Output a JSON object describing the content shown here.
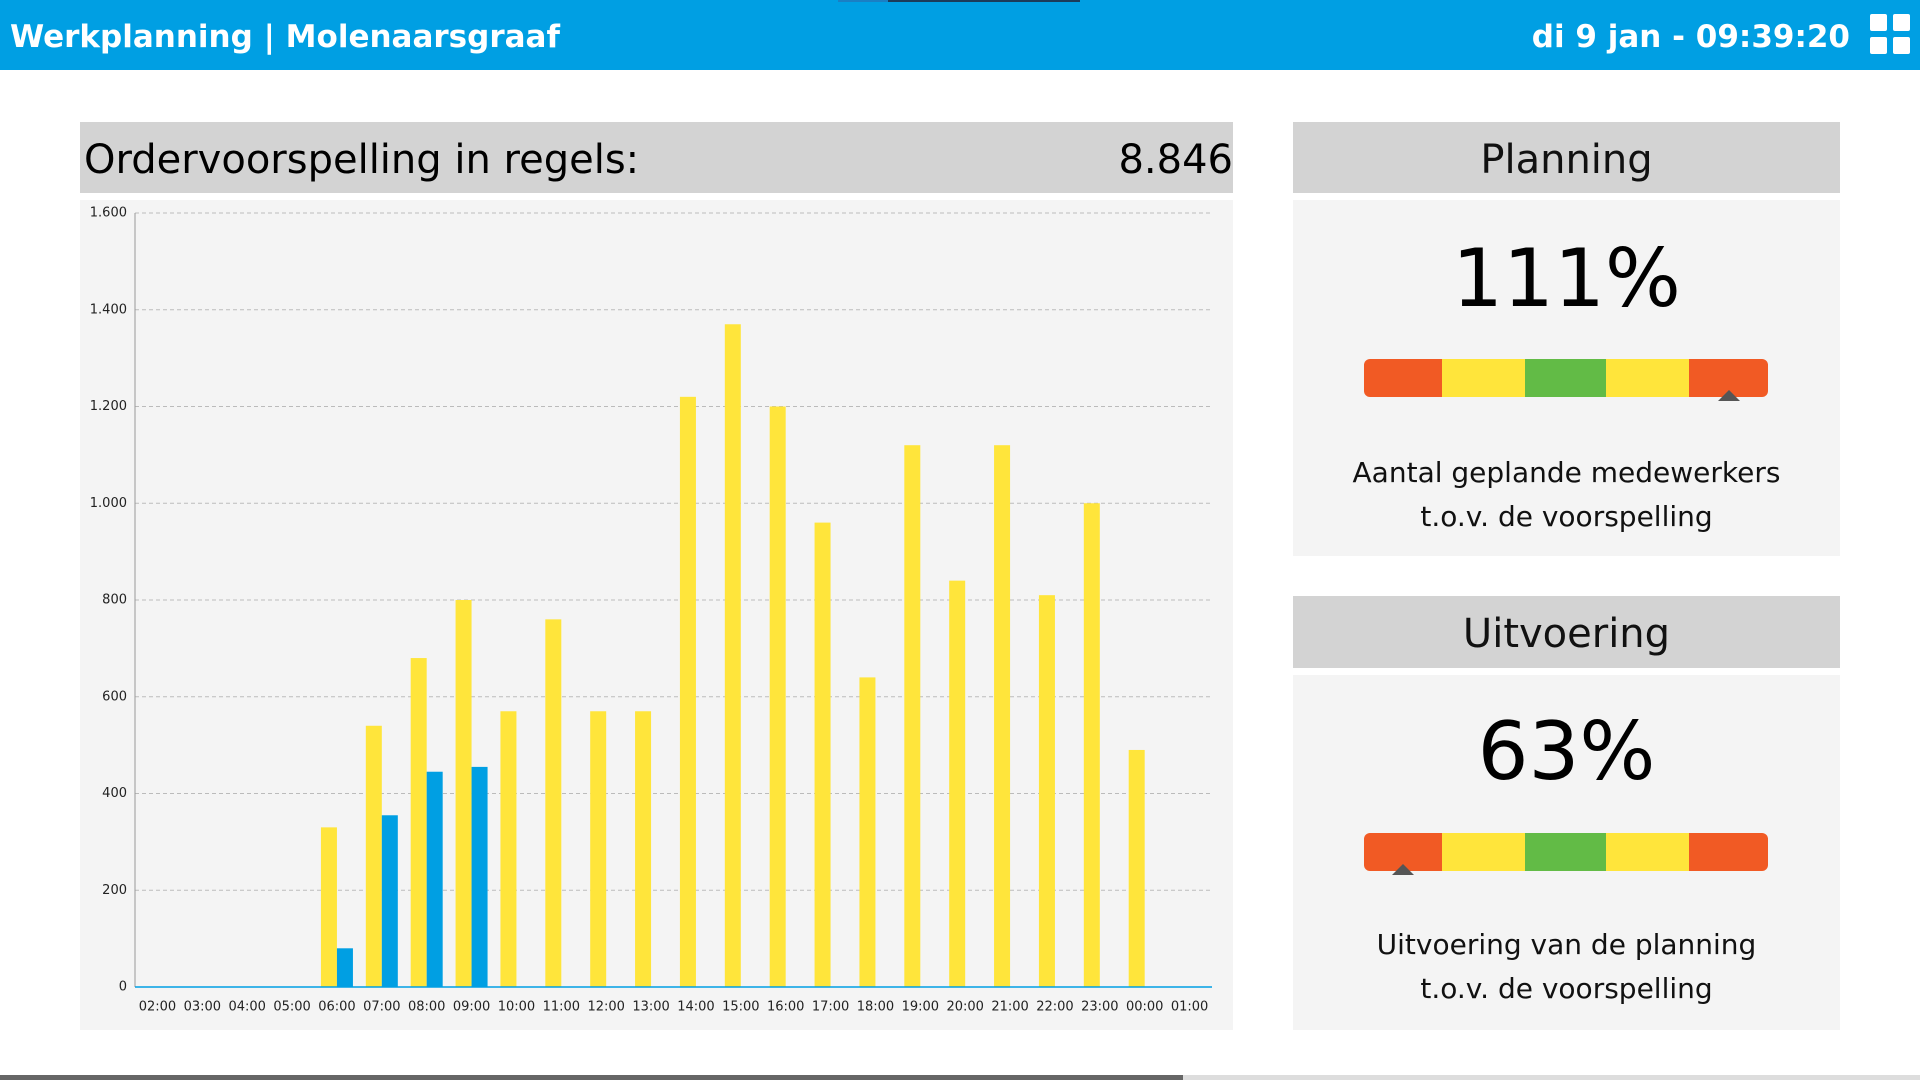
{
  "header": {
    "title": "Werkplanning | Molenaarsgraaf",
    "datetime": "di 9 jan - 09:39:20"
  },
  "chart_data": {
    "type": "bar",
    "title": "Ordervoorspelling in regels:",
    "total": "8.846",
    "categories": [
      "02:00",
      "03:00",
      "04:00",
      "05:00",
      "06:00",
      "07:00",
      "08:00",
      "09:00",
      "10:00",
      "11:00",
      "12:00",
      "13:00",
      "14:00",
      "15:00",
      "16:00",
      "17:00",
      "18:00",
      "19:00",
      "20:00",
      "21:00",
      "22:00",
      "23:00",
      "00:00",
      "01:00"
    ],
    "series": [
      {
        "color": "#ffe53b",
        "values": [
          0,
          0,
          0,
          0,
          330,
          540,
          680,
          800,
          570,
          760,
          570,
          570,
          1220,
          1370,
          1200,
          960,
          640,
          1120,
          840,
          1120,
          810,
          1000,
          490,
          0
        ]
      },
      {
        "color": "#009fe3",
        "values": [
          0,
          0,
          0,
          0,
          80,
          355,
          445,
          455,
          0,
          0,
          0,
          0,
          0,
          0,
          0,
          0,
          0,
          0,
          0,
          0,
          0,
          0,
          0,
          0
        ]
      }
    ],
    "ylim": [
      0,
      1600
    ],
    "yticks": [
      0,
      {
        "value": 200,
        "label": "200"
      },
      {
        "value": 400,
        "label": "400"
      },
      {
        "value": 600,
        "label": "600"
      },
      {
        "value": 800,
        "label": "800"
      },
      {
        "value": 1000,
        "label": "1.000"
      },
      {
        "value": 1200,
        "label": "1.200"
      },
      {
        "value": 1400,
        "label": "1.400"
      },
      {
        "value": 1600,
        "label": "1.600"
      }
    ],
    "grid": true
  },
  "planning": {
    "title": "Planning",
    "value": "111%",
    "text": [
      "Aantal geplande medewerkers",
      "t.o.v. de voorspelling"
    ]
  },
  "uitvoering": {
    "title": "Uitvoering",
    "value": "63%",
    "text": [
      "Uitvoering van de planning",
      "t.o.v. de voorspelling"
    ]
  }
}
